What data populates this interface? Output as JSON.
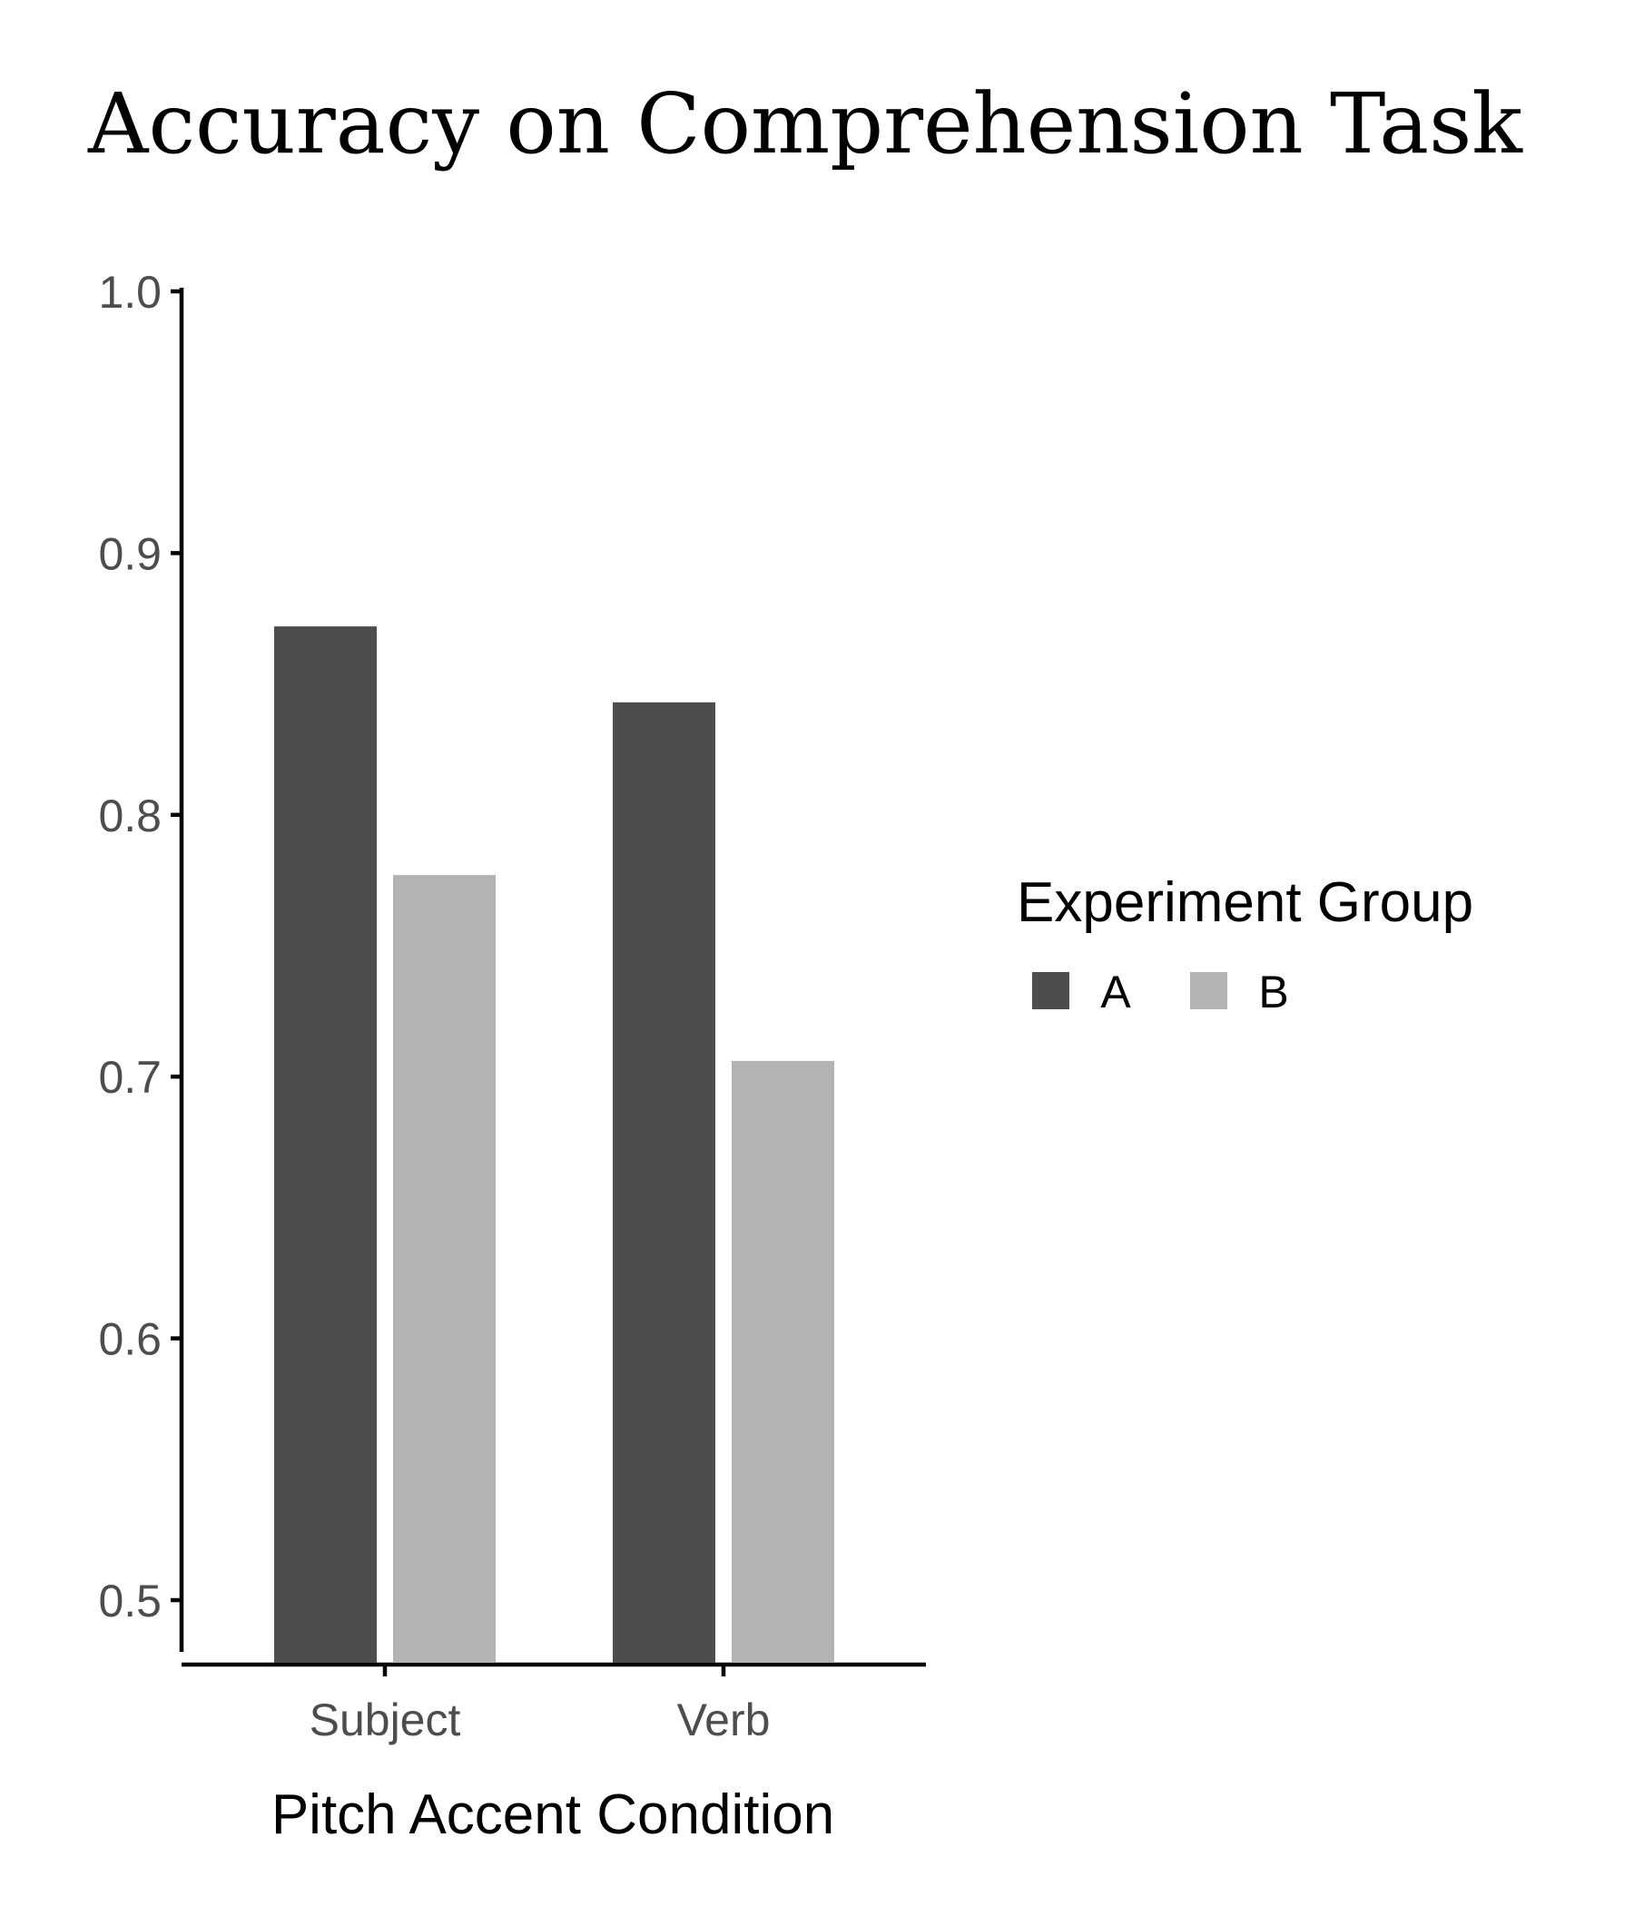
{
  "chart_data": {
    "type": "bar",
    "title": "Accuracy on Comprehension Task",
    "xlabel": "Pitch Accent Condition",
    "ylabel": "",
    "categories": [
      "Subject",
      "Verb"
    ],
    "series": [
      {
        "name": "A",
        "color": "#4d4d4d",
        "values": [
          0.872,
          0.843
        ]
      },
      {
        "name": "B",
        "color": "#b3b3b3",
        "values": [
          0.777,
          0.706
        ]
      }
    ],
    "ylim": [
      0.476,
      1.0
    ],
    "yticks": [
      0.5,
      0.6,
      0.7,
      0.8,
      0.9,
      1.0
    ],
    "ytick_labels": [
      "0.5",
      "0.6",
      "0.7",
      "0.8",
      "0.9",
      "1.0"
    ],
    "grid": false,
    "legend": {
      "title": "Experiment Group",
      "placement": "right",
      "orientation": "horizontal"
    }
  }
}
